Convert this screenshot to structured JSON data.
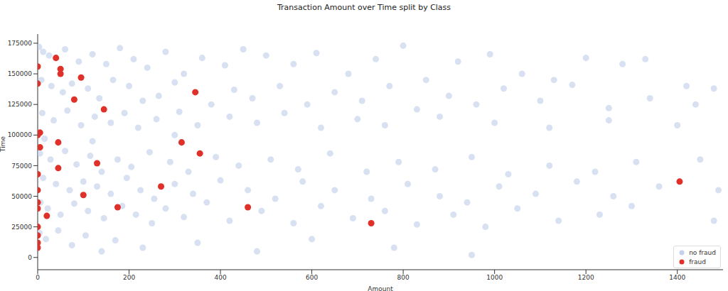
{
  "chart_data": {
    "type": "scatter",
    "title": "Transaction Amount over Time split by Class",
    "x_label": "Amount",
    "y_label": "Time",
    "xlim": [
      0,
      1500
    ],
    "xticks": [
      0,
      200,
      400,
      600,
      800,
      1000,
      1200,
      1400
    ],
    "ylim": [
      -10000,
      182500
    ],
    "yticks": [
      0,
      25000,
      50000,
      75000,
      100000,
      125000,
      150000,
      175000
    ],
    "grid": false,
    "legend": "lower right",
    "series": [
      {
        "name": "no fraud",
        "color": "#c3d1ea",
        "marker": "circle",
        "values": [
          [
            3,
            172000
          ],
          [
            12,
            168000
          ],
          [
            25,
            165000
          ],
          [
            60,
            170000
          ],
          [
            90,
            160000
          ],
          [
            120,
            166000
          ],
          [
            150,
            158000
          ],
          [
            180,
            171000
          ],
          [
            210,
            162000
          ],
          [
            240,
            155000
          ],
          [
            280,
            168000
          ],
          [
            320,
            150000
          ],
          [
            360,
            163000
          ],
          [
            410,
            157000
          ],
          [
            450,
            170000
          ],
          [
            500,
            165000
          ],
          [
            560,
            158000
          ],
          [
            610,
            167000
          ],
          [
            680,
            150000
          ],
          [
            740,
            162000
          ],
          [
            800,
            173000
          ],
          [
            850,
            145000
          ],
          [
            920,
            160000
          ],
          [
            990,
            166000
          ],
          [
            1060,
            150000
          ],
          [
            1130,
            145000
          ],
          [
            1200,
            163000
          ],
          [
            1280,
            158000
          ],
          [
            1330,
            162000
          ],
          [
            1420,
            140000
          ],
          [
            1480,
            138000
          ],
          [
            8,
            145000
          ],
          [
            30,
            140000
          ],
          [
            55,
            135000
          ],
          [
            75,
            142000
          ],
          [
            110,
            138000
          ],
          [
            135,
            130000
          ],
          [
            165,
            145000
          ],
          [
            200,
            140000
          ],
          [
            230,
            128000
          ],
          [
            265,
            132000
          ],
          [
            300,
            143000
          ],
          [
            380,
            125000
          ],
          [
            430,
            137000
          ],
          [
            470,
            130000
          ],
          [
            530,
            140000
          ],
          [
            590,
            125000
          ],
          [
            650,
            135000
          ],
          [
            710,
            128000
          ],
          [
            770,
            140000
          ],
          [
            830,
            121000
          ],
          [
            900,
            132000
          ],
          [
            960,
            125000
          ],
          [
            1020,
            138000
          ],
          [
            1100,
            128000
          ],
          [
            1170,
            141000
          ],
          [
            1250,
            122000
          ],
          [
            1340,
            130000
          ],
          [
            1440,
            125000
          ],
          [
            10,
            118000
          ],
          [
            35,
            112000
          ],
          [
            65,
            120000
          ],
          [
            95,
            108000
          ],
          [
            125,
            115000
          ],
          [
            160,
            110000
          ],
          [
            190,
            118000
          ],
          [
            220,
            106000
          ],
          [
            260,
            113000
          ],
          [
            310,
            119000
          ],
          [
            350,
            108000
          ],
          [
            420,
            115000
          ],
          [
            480,
            110000
          ],
          [
            540,
            118000
          ],
          [
            620,
            106000
          ],
          [
            700,
            113000
          ],
          [
            760,
            108000
          ],
          [
            880,
            115000
          ],
          [
            1000,
            110000
          ],
          [
            1120,
            106000
          ],
          [
            1250,
            112000
          ],
          [
            1400,
            108000
          ],
          [
            15,
            97000
          ],
          [
            120,
            95000
          ],
          [
            300,
            100000
          ],
          [
            5,
            85000
          ],
          [
            28,
            80000
          ],
          [
            60,
            87000
          ],
          [
            85,
            76000
          ],
          [
            115,
            83000
          ],
          [
            140,
            70000
          ],
          [
            175,
            80000
          ],
          [
            205,
            74000
          ],
          [
            245,
            86000
          ],
          [
            290,
            78000
          ],
          [
            330,
            70000
          ],
          [
            390,
            82000
          ],
          [
            440,
            75000
          ],
          [
            510,
            80000
          ],
          [
            570,
            72000
          ],
          [
            640,
            85000
          ],
          [
            720,
            70000
          ],
          [
            790,
            78000
          ],
          [
            870,
            72000
          ],
          [
            950,
            82000
          ],
          [
            1030,
            68000
          ],
          [
            1120,
            75000
          ],
          [
            1220,
            70000
          ],
          [
            1310,
            78000
          ],
          [
            1450,
            80000
          ],
          [
            12,
            65000
          ],
          [
            40,
            60000
          ],
          [
            70,
            55000
          ],
          [
            100,
            62000
          ],
          [
            130,
            58000
          ],
          [
            160,
            52000
          ],
          [
            195,
            65000
          ],
          [
            225,
            55000
          ],
          [
            255,
            48000
          ],
          [
            300,
            60000
          ],
          [
            340,
            52000
          ],
          [
            400,
            63000
          ],
          [
            460,
            55000
          ],
          [
            520,
            48000
          ],
          [
            580,
            62000
          ],
          [
            650,
            55000
          ],
          [
            730,
            48000
          ],
          [
            810,
            60000
          ],
          [
            880,
            50000
          ],
          [
            940,
            45000
          ],
          [
            1010,
            58000
          ],
          [
            1090,
            52000
          ],
          [
            1180,
            62000
          ],
          [
            1260,
            50000
          ],
          [
            1360,
            58000
          ],
          [
            1490,
            55000
          ],
          [
            6,
            45000
          ],
          [
            22,
            40000
          ],
          [
            50,
            35000
          ],
          [
            80,
            44000
          ],
          [
            110,
            38000
          ],
          [
            145,
            32000
          ],
          [
            185,
            42000
          ],
          [
            215,
            35000
          ],
          [
            250,
            28000
          ],
          [
            280,
            40000
          ],
          [
            320,
            33000
          ],
          [
            370,
            45000
          ],
          [
            420,
            30000
          ],
          [
            490,
            38000
          ],
          [
            560,
            28000
          ],
          [
            620,
            42000
          ],
          [
            690,
            32000
          ],
          [
            760,
            38000
          ],
          [
            830,
            27000
          ],
          [
            910,
            35000
          ],
          [
            980,
            25000
          ],
          [
            1050,
            40000
          ],
          [
            1140,
            30000
          ],
          [
            1230,
            35000
          ],
          [
            1300,
            42000
          ],
          [
            1480,
            30000
          ],
          [
            4,
            20000
          ],
          [
            18,
            15000
          ],
          [
            45,
            22000
          ],
          [
            75,
            10000
          ],
          [
            105,
            18000
          ],
          [
            140,
            5000
          ],
          [
            170,
            14000
          ],
          [
            230,
            8000
          ],
          [
            350,
            12000
          ],
          [
            480,
            5000
          ],
          [
            600,
            15000
          ],
          [
            780,
            8000
          ],
          [
            950,
            2000
          ]
        ]
      },
      {
        "name": "fraud",
        "color": "#e0302a",
        "marker": "circle",
        "values": [
          [
            0,
            156000
          ],
          [
            0,
            142000
          ],
          [
            40,
            163000
          ],
          [
            50,
            154000
          ],
          [
            50,
            150000
          ],
          [
            95,
            147000
          ],
          [
            345,
            135000
          ],
          [
            80,
            129000
          ],
          [
            145,
            121000
          ],
          [
            5,
            102000
          ],
          [
            0,
            100000
          ],
          [
            5,
            90000
          ],
          [
            45,
            94000
          ],
          [
            315,
            94000
          ],
          [
            355,
            85000
          ],
          [
            130,
            77000
          ],
          [
            45,
            73000
          ],
          [
            0,
            68000
          ],
          [
            270,
            58000
          ],
          [
            100,
            51000
          ],
          [
            1405,
            62000
          ],
          [
            0,
            55000
          ],
          [
            0,
            45000
          ],
          [
            0,
            40000
          ],
          [
            175,
            41000
          ],
          [
            460,
            41000
          ],
          [
            20,
            34000
          ],
          [
            730,
            28000
          ],
          [
            0,
            25000
          ],
          [
            0,
            18000
          ],
          [
            0,
            12000
          ],
          [
            0,
            8000
          ]
        ]
      }
    ]
  }
}
